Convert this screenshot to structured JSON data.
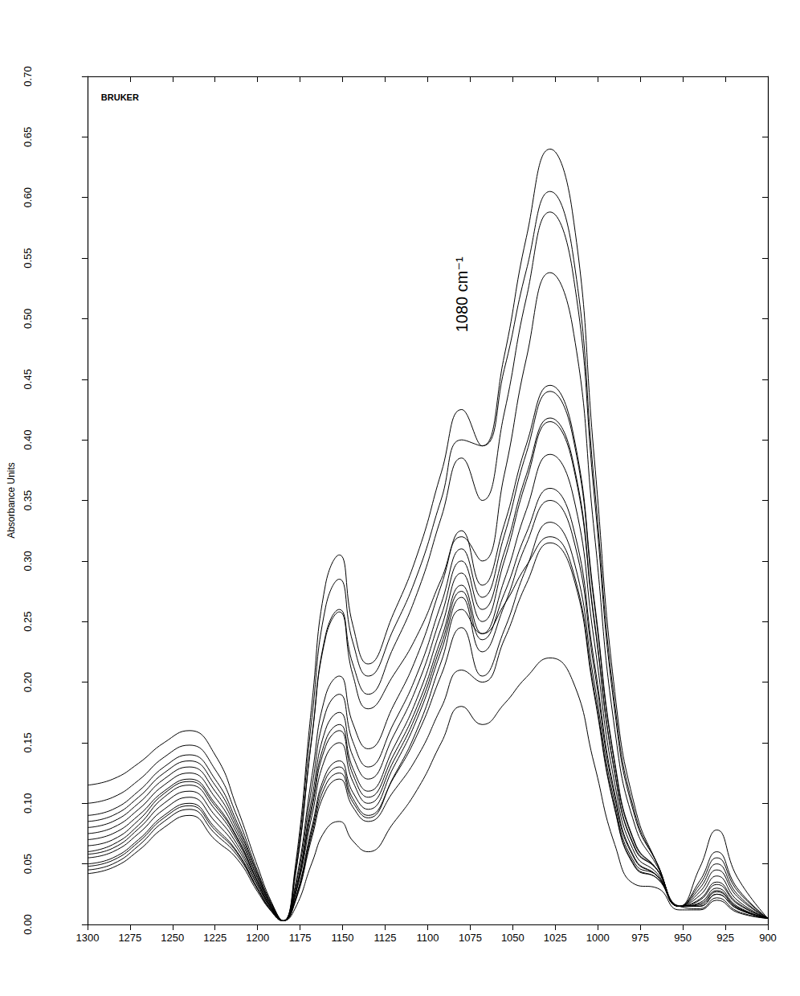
{
  "chart_data": {
    "type": "line",
    "y_label": "Absorbance Units",
    "color": "#000000",
    "grid": false,
    "xlim": [
      1300,
      900
    ],
    "xticks": [
      1300,
      1275,
      1250,
      1225,
      1200,
      1175,
      1150,
      1125,
      1100,
      1075,
      1050,
      1025,
      1000,
      975,
      950,
      925,
      900
    ],
    "ylim": [
      0,
      0.7
    ],
    "yticks": [
      {
        "value": 0,
        "label": "0.00"
      },
      {
        "value": 0.05,
        "label": "0.05"
      },
      {
        "value": 0.1,
        "label": "0.10"
      },
      {
        "value": 0.15,
        "label": "0.15"
      },
      {
        "value": 0.2,
        "label": "0.20"
      },
      {
        "value": 0.25,
        "label": "0.25"
      },
      {
        "value": 0.3,
        "label": "0.30"
      },
      {
        "value": 0.35,
        "label": "0.35"
      },
      {
        "value": 0.4,
        "label": "0.40"
      },
      {
        "value": 0.45,
        "label": "0.45"
      },
      {
        "value": 0.5,
        "label": "0.50"
      },
      {
        "value": 0.55,
        "label": "0.55"
      },
      {
        "value": 0.6,
        "label": "0.60"
      },
      {
        "value": 0.65,
        "label": "0.65"
      },
      {
        "value": 0.7,
        "label": "0.70"
      }
    ],
    "annotations": [
      {
        "text": "1080 cm⁻¹",
        "x": 1080,
        "y": 0.52
      },
      {
        "text": "BRUKER",
        "x": 1292,
        "y": 0.683
      }
    ],
    "x": [
      1300,
      1285,
      1270,
      1255,
      1240,
      1225,
      1212,
      1200,
      1192,
      1185,
      1178,
      1168,
      1160,
      1152,
      1144,
      1135,
      1120,
      1105,
      1092,
      1080,
      1068,
      1055,
      1042,
      1028,
      1015,
      1002,
      990,
      978,
      965,
      952,
      940,
      930,
      918,
      900
    ],
    "series": [
      {
        "values": [
          0.115,
          0.12,
          0.133,
          0.15,
          0.16,
          0.14,
          0.096,
          0.048,
          0.019,
          0.003,
          0.046,
          0.183,
          0.281,
          0.305,
          0.247,
          0.215,
          0.257,
          0.31,
          0.373,
          0.425,
          0.395,
          0.469,
          0.567,
          0.64,
          0.589,
          0.384,
          0.192,
          0.096,
          0.05,
          0.015,
          0.047,
          0.078,
          0.039,
          0.005
        ]
      },
      {
        "values": [
          0.1,
          0.105,
          0.119,
          0.138,
          0.148,
          0.128,
          0.089,
          0.044,
          0.018,
          0.003,
          0.043,
          0.171,
          0.262,
          0.285,
          0.233,
          0.205,
          0.244,
          0.293,
          0.351,
          0.4,
          0.395,
          0.458,
          0.54,
          0.605,
          0.557,
          0.363,
          0.182,
          0.091,
          0.05,
          0.015,
          0.036,
          0.06,
          0.03,
          0.005
        ]
      },
      {
        "values": [
          0.09,
          0.095,
          0.11,
          0.13,
          0.14,
          0.12,
          0.084,
          0.042,
          0.017,
          0.003,
          0.039,
          0.156,
          0.239,
          0.26,
          0.215,
          0.19,
          0.229,
          0.278,
          0.336,
          0.385,
          0.35,
          0.422,
          0.517,
          0.588,
          0.541,
          0.353,
          0.176,
          0.088,
          0.05,
          0.015,
          0.033,
          0.055,
          0.028,
          0.005
        ]
      },
      {
        "values": [
          0.085,
          0.09,
          0.105,
          0.125,
          0.135,
          0.115,
          0.081,
          0.041,
          0.016,
          0.003,
          0.039,
          0.155,
          0.237,
          0.258,
          0.206,
          0.178,
          0.206,
          0.242,
          0.285,
          0.32,
          0.3,
          0.371,
          0.467,
          0.538,
          0.495,
          0.323,
          0.161,
          0.081,
          0.048,
          0.015,
          0.03,
          0.05,
          0.025,
          0.005
        ]
      },
      {
        "values": [
          0.08,
          0.085,
          0.1,
          0.12,
          0.13,
          0.11,
          0.078,
          0.039,
          0.016,
          0.003,
          0.031,
          0.123,
          0.189,
          0.205,
          0.166,
          0.145,
          0.181,
          0.226,
          0.28,
          0.325,
          0.28,
          0.33,
          0.396,
          0.445,
          0.409,
          0.267,
          0.134,
          0.067,
          0.045,
          0.015,
          0.027,
          0.045,
          0.023,
          0.005
        ]
      },
      {
        "values": [
          0.075,
          0.08,
          0.095,
          0.115,
          0.125,
          0.105,
          0.075,
          0.038,
          0.015,
          0.003,
          0.029,
          0.114,
          0.175,
          0.19,
          0.151,
          0.13,
          0.166,
          0.211,
          0.265,
          0.31,
          0.27,
          0.321,
          0.389,
          0.44,
          0.405,
          0.264,
          0.132,
          0.066,
          0.045,
          0.015,
          0.024,
          0.04,
          0.02,
          0.005
        ]
      },
      {
        "values": [
          0.07,
          0.075,
          0.09,
          0.11,
          0.12,
          0.1,
          0.072,
          0.036,
          0.014,
          0.003,
          0.026,
          0.105,
          0.161,
          0.175,
          0.139,
          0.12,
          0.156,
          0.201,
          0.255,
          0.3,
          0.26,
          0.307,
          0.371,
          0.418,
          0.385,
          0.251,
          0.125,
          0.063,
          0.045,
          0.015,
          0.021,
          0.035,
          0.018,
          0.005
        ]
      },
      {
        "values": [
          0.065,
          0.07,
          0.086,
          0.108,
          0.118,
          0.098,
          0.071,
          0.035,
          0.014,
          0.003,
          0.025,
          0.099,
          0.152,
          0.165,
          0.129,
          0.11,
          0.146,
          0.191,
          0.245,
          0.29,
          0.25,
          0.3,
          0.366,
          0.415,
          0.382,
          0.249,
          0.125,
          0.062,
          0.045,
          0.015,
          0.02,
          0.033,
          0.017,
          0.005
        ]
      },
      {
        "values": [
          0.06,
          0.066,
          0.082,
          0.105,
          0.115,
          0.095,
          0.069,
          0.035,
          0.014,
          0.003,
          0.024,
          0.096,
          0.147,
          0.16,
          0.124,
          0.105,
          0.14,
          0.184,
          0.236,
          0.28,
          0.24,
          0.284,
          0.342,
          0.388,
          0.357,
          0.233,
          0.116,
          0.058,
          0.042,
          0.015,
          0.018,
          0.03,
          0.015,
          0.005
        ]
      },
      {
        "values": [
          0.058,
          0.063,
          0.079,
          0.1,
          0.11,
          0.09,
          0.066,
          0.033,
          0.013,
          0.003,
          0.023,
          0.09,
          0.138,
          0.15,
          0.118,
          0.1,
          0.135,
          0.179,
          0.231,
          0.275,
          0.235,
          0.273,
          0.323,
          0.36,
          0.331,
          0.216,
          0.108,
          0.054,
          0.04,
          0.015,
          0.017,
          0.028,
          0.014,
          0.005
        ]
      },
      {
        "values": [
          0.055,
          0.06,
          0.075,
          0.095,
          0.105,
          0.085,
          0.063,
          0.032,
          0.013,
          0.003,
          0.02,
          0.081,
          0.124,
          0.135,
          0.109,
          0.095,
          0.13,
          0.174,
          0.226,
          0.27,
          0.225,
          0.263,
          0.314,
          0.35,
          0.322,
          0.21,
          0.105,
          0.053,
          0.04,
          0.015,
          0.016,
          0.027,
          0.014,
          0.005
        ]
      },
      {
        "values": [
          0.05,
          0.055,
          0.07,
          0.09,
          0.1,
          0.08,
          0.06,
          0.03,
          0.012,
          0.003,
          0.02,
          0.078,
          0.12,
          0.13,
          0.104,
          0.09,
          0.121,
          0.16,
          0.206,
          0.245,
          0.205,
          0.243,
          0.294,
          0.332,
          0.305,
          0.199,
          0.1,
          0.05,
          0.04,
          0.015,
          0.015,
          0.025,
          0.013,
          0.005
        ]
      },
      {
        "values": [
          0.048,
          0.053,
          0.068,
          0.088,
          0.098,
          0.078,
          0.059,
          0.029,
          0.012,
          0.003,
          0.019,
          0.075,
          0.115,
          0.125,
          0.101,
          0.088,
          0.122,
          0.165,
          0.217,
          0.26,
          0.24,
          0.264,
          0.296,
          0.32,
          0.294,
          0.192,
          0.096,
          0.048,
          0.038,
          0.015,
          0.015,
          0.025,
          0.013,
          0.005
        ]
      },
      {
        "values": [
          0.045,
          0.05,
          0.065,
          0.085,
          0.095,
          0.075,
          0.057,
          0.029,
          0.011,
          0.003,
          0.018,
          0.072,
          0.11,
          0.12,
          0.097,
          0.085,
          0.11,
          0.141,
          0.179,
          0.21,
          0.2,
          0.235,
          0.281,
          0.315,
          0.29,
          0.189,
          0.095,
          0.047,
          0.038,
          0.015,
          0.013,
          0.022,
          0.011,
          0.005
        ]
      },
      {
        "values": [
          0.042,
          0.047,
          0.061,
          0.08,
          0.09,
          0.07,
          0.054,
          0.027,
          0.011,
          0.003,
          0.013,
          0.051,
          0.078,
          0.085,
          0.069,
          0.06,
          0.084,
          0.114,
          0.15,
          0.18,
          0.165,
          0.182,
          0.204,
          0.22,
          0.202,
          0.132,
          0.066,
          0.033,
          0.03,
          0.012,
          0.012,
          0.02,
          0.01,
          0.005
        ]
      }
    ]
  }
}
